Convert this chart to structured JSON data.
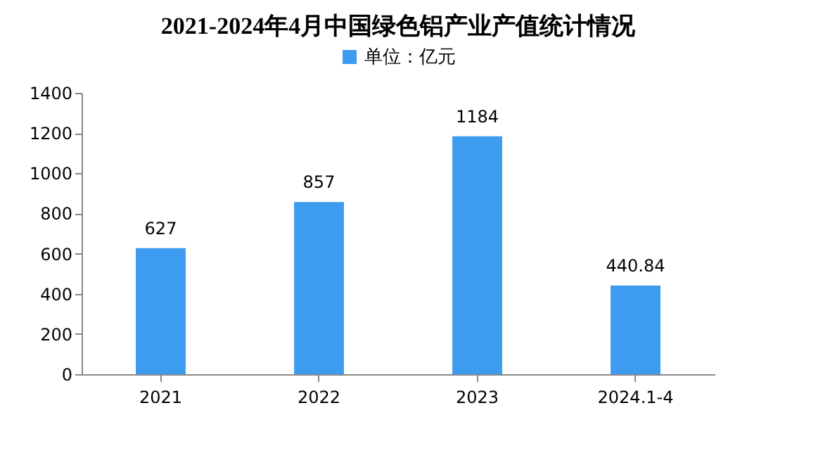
{
  "chart_data": {
    "type": "bar",
    "title": "2021-2024年4月中国绿色铝产业产值统计情况",
    "categories": [
      "2021",
      "2022",
      "2023",
      "2024.1-4"
    ],
    "series": [
      {
        "name": "单位：亿元",
        "color": "#3d9bf0",
        "values": [
          627,
          857,
          1184,
          440.84
        ]
      }
    ],
    "ylim": [
      0,
      1400
    ],
    "yticks": [
      0,
      200,
      400,
      600,
      800,
      1000,
      1200,
      1400
    ],
    "data_labels": true,
    "legend": "top",
    "grid": false
  }
}
